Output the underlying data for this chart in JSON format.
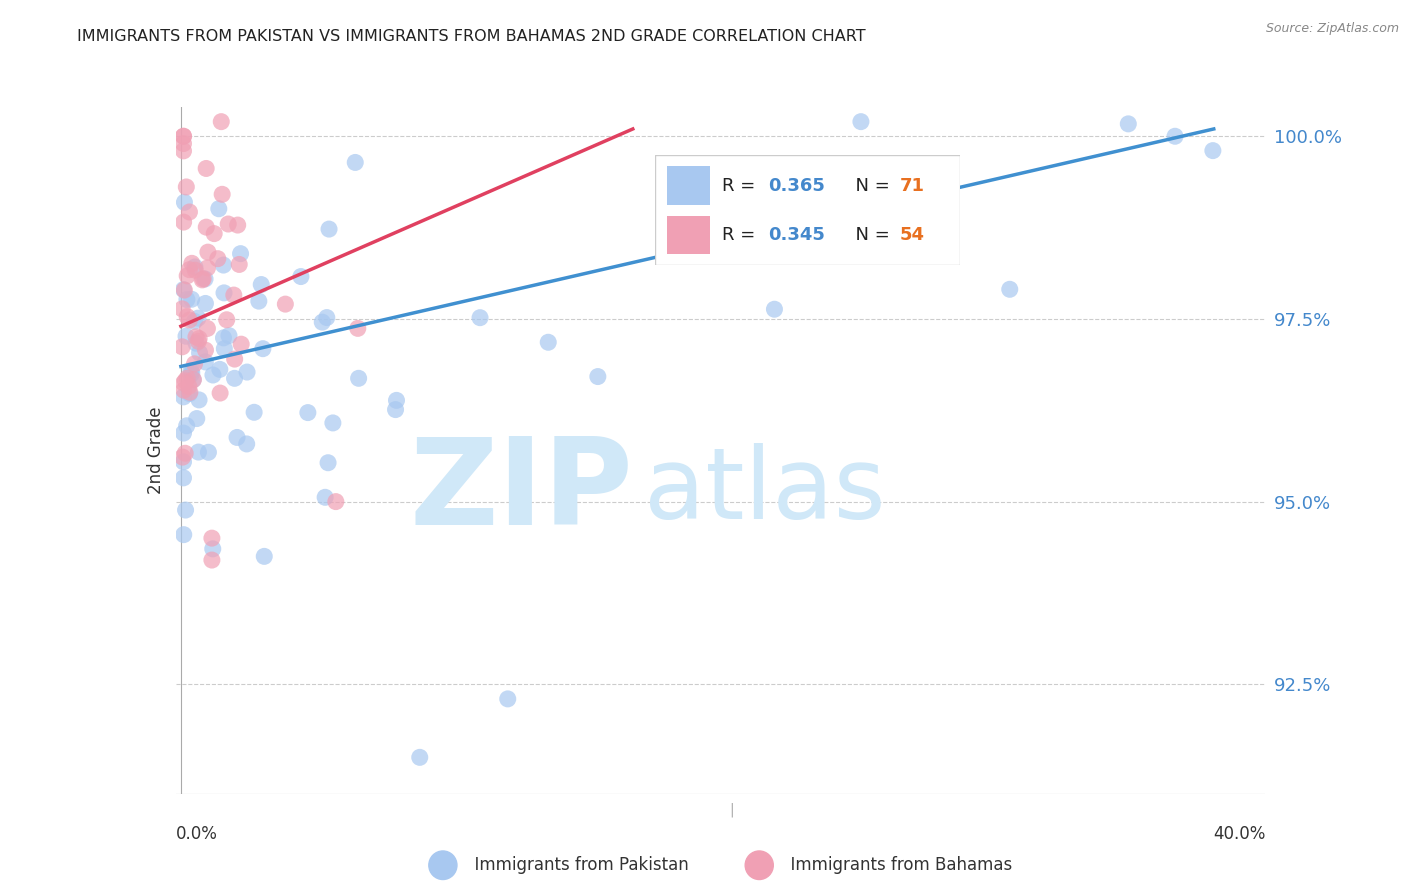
{
  "title": "IMMIGRANTS FROM PAKISTAN VS IMMIGRANTS FROM BAHAMAS 2ND GRADE CORRELATION CHART",
  "source": "Source: ZipAtlas.com",
  "ylabel": "2nd Grade",
  "ytick_values": [
    1.0,
    0.975,
    0.95,
    0.925
  ],
  "ymin": 0.91,
  "ymax": 1.004,
  "xmin": -0.002,
  "xmax": 0.42,
  "legend_blue_r": "0.365",
  "legend_blue_n": "71",
  "legend_pink_r": "0.345",
  "legend_pink_n": "54",
  "legend_blue_label": "Immigrants from Pakistan",
  "legend_pink_label": "Immigrants from Bahamas",
  "dot_color_blue": "#a8c8f0",
  "dot_color_pink": "#f0a0b4",
  "line_color_blue": "#4090d0",
  "line_color_pink": "#e04060",
  "watermark_zip": "ZIP",
  "watermark_atlas": "atlas",
  "watermark_color": "#d0e8f8",
  "background_color": "#ffffff",
  "grid_color": "#cccccc",
  "title_fontsize": 11.5,
  "axis_label_color": "#4488cc",
  "text_color_blue": "#4488cc",
  "text_color_black": "#222222",
  "text_color_orange": "#e87020",
  "blue_line_x0": 0.0,
  "blue_line_y0": 0.9685,
  "blue_line_x1": 0.4,
  "blue_line_y1": 1.001,
  "pink_line_x0": 0.0,
  "pink_line_y0": 0.974,
  "pink_line_x1": 0.175,
  "pink_line_y1": 1.001
}
